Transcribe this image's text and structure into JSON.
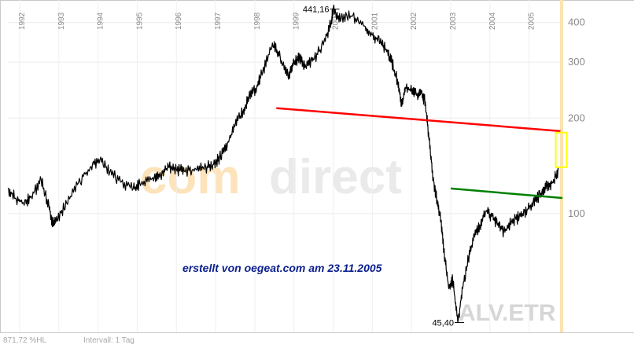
{
  "chart_data": {
    "type": "line",
    "ticker": "ALV.ETR",
    "watermark": {
      "part1": "com",
      "part2": "direct"
    },
    "credit": "erstellt von oegeat.com am 23.11.2005",
    "footer": {
      "left": "871,72 %HL",
      "right": "Intervall: 1 Tag"
    },
    "x_axis_labels": [
      "1992",
      "1993",
      "1994",
      "1995",
      "1996",
      "1997",
      "1998",
      "1999",
      "2000",
      "2001",
      "2002",
      "2003",
      "2004",
      "2005"
    ],
    "y_scale": "log",
    "y_ticks": [
      100,
      200,
      300,
      400
    ],
    "y_tick_labels": [
      "100",
      "200",
      "300",
      "400"
    ],
    "annotations": {
      "high_label": "441,16",
      "high_value": 441.16,
      "high_date": 2000.0,
      "low_label": "45,40",
      "low_value": 45.4,
      "low_date": 2003.18
    },
    "series": [
      {
        "color": "#000000",
        "points": [
          [
            1991.7,
            120
          ],
          [
            1991.9,
            112
          ],
          [
            1992.1,
            108
          ],
          [
            1992.3,
            113
          ],
          [
            1992.55,
            128
          ],
          [
            1992.75,
            105
          ],
          [
            1992.85,
            92
          ],
          [
            1992.95,
            96
          ],
          [
            1993.2,
            108
          ],
          [
            1993.5,
            125
          ],
          [
            1993.8,
            140
          ],
          [
            1994.05,
            148
          ],
          [
            1994.3,
            135
          ],
          [
            1994.6,
            126
          ],
          [
            1994.9,
            120
          ],
          [
            1995.1,
            124
          ],
          [
            1995.4,
            130
          ],
          [
            1995.6,
            132
          ],
          [
            1995.8,
            140
          ],
          [
            1996.0,
            138
          ],
          [
            1996.2,
            136
          ],
          [
            1996.5,
            138
          ],
          [
            1996.75,
            140
          ],
          [
            1996.95,
            143
          ],
          [
            1997.1,
            150
          ],
          [
            1997.3,
            165
          ],
          [
            1997.5,
            190
          ],
          [
            1997.7,
            210
          ],
          [
            1997.85,
            232
          ],
          [
            1998.05,
            250
          ],
          [
            1998.2,
            280
          ],
          [
            1998.45,
            345
          ],
          [
            1998.65,
            310
          ],
          [
            1998.85,
            270
          ],
          [
            1999.0,
            300
          ],
          [
            1999.15,
            310
          ],
          [
            1999.3,
            290
          ],
          [
            1999.5,
            305
          ],
          [
            1999.75,
            340
          ],
          [
            1999.95,
            400
          ],
          [
            2000.0,
            441.16
          ],
          [
            2000.2,
            410
          ],
          [
            2000.5,
            420
          ],
          [
            2000.8,
            390
          ],
          [
            2001.0,
            365
          ],
          [
            2001.2,
            345
          ],
          [
            2001.35,
            330
          ],
          [
            2001.5,
            300
          ],
          [
            2001.65,
            260
          ],
          [
            2001.75,
            218
          ],
          [
            2001.85,
            250
          ],
          [
            2002.0,
            245
          ],
          [
            2002.15,
            235
          ],
          [
            2002.25,
            240
          ],
          [
            2002.35,
            225
          ],
          [
            2002.45,
            170
          ],
          [
            2002.55,
            130
          ],
          [
            2002.65,
            110
          ],
          [
            2002.75,
            95
          ],
          [
            2002.85,
            72
          ],
          [
            2002.95,
            58
          ],
          [
            2003.05,
            62
          ],
          [
            2003.18,
            45.4
          ],
          [
            2003.3,
            58
          ],
          [
            2003.45,
            72
          ],
          [
            2003.6,
            85
          ],
          [
            2003.75,
            92
          ],
          [
            2003.9,
            102
          ],
          [
            2004.05,
            98
          ],
          [
            2004.2,
            92
          ],
          [
            2004.35,
            88
          ],
          [
            2004.55,
            94
          ],
          [
            2004.75,
            98
          ],
          [
            2004.95,
            103
          ],
          [
            2005.1,
            108
          ],
          [
            2005.3,
            116
          ],
          [
            2005.45,
            122
          ],
          [
            2005.6,
            125
          ],
          [
            2005.75,
            138
          ]
        ]
      }
    ],
    "trendlines": [
      {
        "color": "#ff0000",
        "from": [
          1998.55,
          215
        ],
        "to": [
          2005.8,
          182
        ]
      },
      {
        "color": "#008000",
        "from": [
          2003.0,
          120
        ],
        "to": [
          2005.85,
          112
        ]
      }
    ],
    "highlight_box": {
      "color": "#ffff00",
      "x": 2005.8,
      "y_low": 140,
      "y_high": 180
    }
  }
}
